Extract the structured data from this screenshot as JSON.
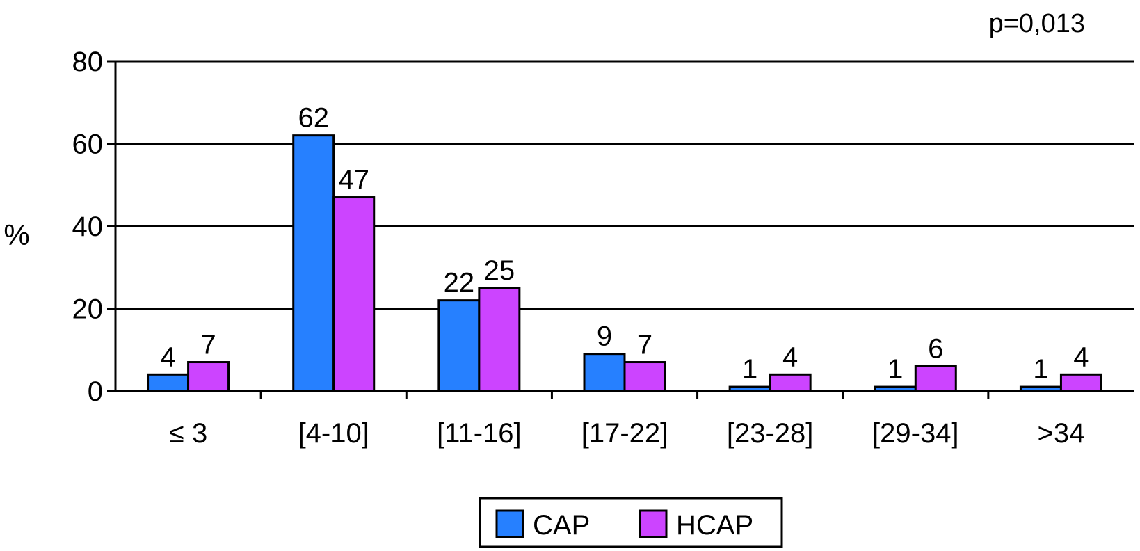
{
  "chart_data": {
    "type": "bar",
    "annotation": "p=0,013",
    "ylabel": "%",
    "xlabel": "",
    "ylim": [
      0,
      80
    ],
    "yticks": [
      0,
      20,
      40,
      60,
      80
    ],
    "grid": true,
    "legend_position": "bottom-center",
    "categories": [
      "≤ 3",
      "[4-10]",
      "[11-16]",
      "[17-22]",
      "[23-28]",
      "[29-34]",
      ">34"
    ],
    "series": [
      {
        "name": "CAP",
        "color": "#2680ff",
        "values": [
          4,
          62,
          22,
          9,
          1,
          1,
          1
        ]
      },
      {
        "name": "HCAP",
        "color": "#cc44ff",
        "values": [
          7,
          47,
          25,
          7,
          4,
          6,
          4
        ]
      }
    ]
  }
}
